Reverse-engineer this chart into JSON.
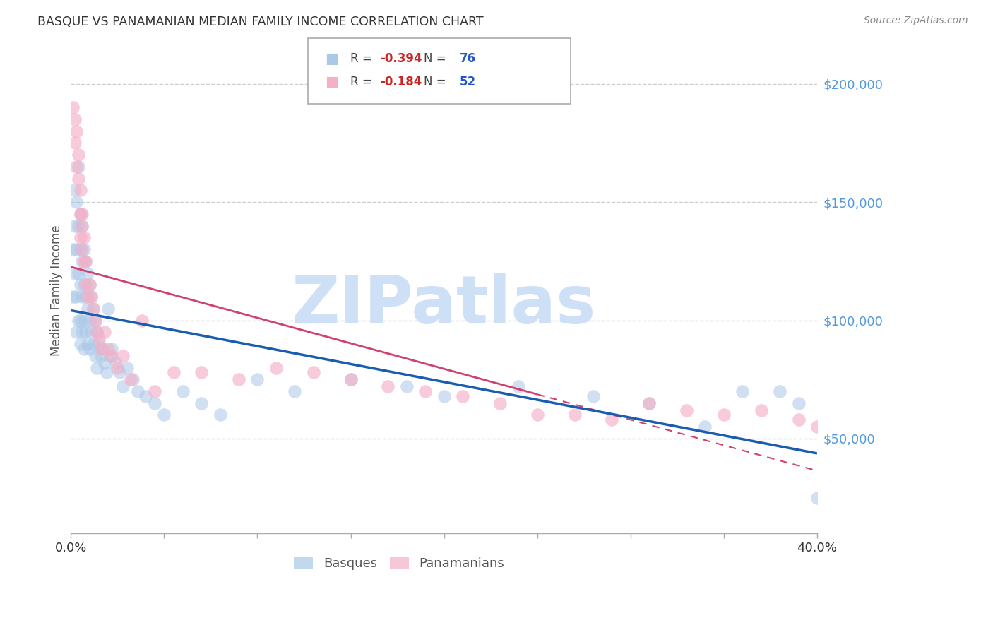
{
  "title": "BASQUE VS PANAMANIAN MEDIAN FAMILY INCOME CORRELATION CHART",
  "source": "Source: ZipAtlas.com",
  "ylabel": "Median Family Income",
  "y_ticks": [
    50000,
    100000,
    150000,
    200000
  ],
  "y_tick_labels": [
    "$50,000",
    "$100,000",
    "$150,000",
    "$200,000"
  ],
  "ylim": [
    10000,
    215000
  ],
  "xlim": [
    0.0,
    0.4
  ],
  "blue_R": -0.394,
  "blue_N": 76,
  "pink_R": -0.184,
  "pink_N": 52,
  "blue_color": "#aac8e8",
  "pink_color": "#f4b0c8",
  "blue_line_color": "#1a5cb0",
  "pink_line_color": "#d04070",
  "pink_line_dash": [
    6,
    4
  ],
  "watermark_text": "ZIPatlas",
  "watermark_color": "#cde0f5",
  "legend_label_blue": "Basques",
  "legend_label_pink": "Panamanians",
  "blue_x": [
    0.001,
    0.001,
    0.002,
    0.002,
    0.002,
    0.003,
    0.003,
    0.003,
    0.003,
    0.004,
    0.004,
    0.004,
    0.004,
    0.005,
    0.005,
    0.005,
    0.005,
    0.005,
    0.006,
    0.006,
    0.006,
    0.006,
    0.007,
    0.007,
    0.007,
    0.007,
    0.008,
    0.008,
    0.008,
    0.009,
    0.009,
    0.009,
    0.01,
    0.01,
    0.01,
    0.011,
    0.011,
    0.012,
    0.012,
    0.013,
    0.013,
    0.014,
    0.014,
    0.015,
    0.016,
    0.017,
    0.018,
    0.019,
    0.02,
    0.021,
    0.022,
    0.024,
    0.026,
    0.028,
    0.03,
    0.033,
    0.036,
    0.04,
    0.045,
    0.05,
    0.06,
    0.07,
    0.08,
    0.1,
    0.12,
    0.15,
    0.18,
    0.2,
    0.24,
    0.28,
    0.31,
    0.34,
    0.36,
    0.38,
    0.39,
    0.4
  ],
  "blue_y": [
    130000,
    110000,
    155000,
    140000,
    120000,
    150000,
    130000,
    110000,
    95000,
    165000,
    140000,
    120000,
    100000,
    145000,
    130000,
    115000,
    100000,
    90000,
    140000,
    125000,
    110000,
    95000,
    130000,
    115000,
    100000,
    88000,
    125000,
    110000,
    95000,
    120000,
    105000,
    90000,
    115000,
    100000,
    88000,
    110000,
    95000,
    105000,
    90000,
    100000,
    85000,
    95000,
    80000,
    90000,
    85000,
    88000,
    82000,
    78000,
    105000,
    85000,
    88000,
    82000,
    78000,
    72000,
    80000,
    75000,
    70000,
    68000,
    65000,
    60000,
    70000,
    65000,
    60000,
    75000,
    70000,
    75000,
    72000,
    68000,
    72000,
    68000,
    65000,
    55000,
    70000,
    70000,
    65000,
    25000
  ],
  "pink_x": [
    0.001,
    0.002,
    0.003,
    0.004,
    0.004,
    0.005,
    0.005,
    0.005,
    0.006,
    0.006,
    0.007,
    0.007,
    0.008,
    0.008,
    0.009,
    0.01,
    0.011,
    0.012,
    0.013,
    0.014,
    0.015,
    0.016,
    0.018,
    0.02,
    0.022,
    0.025,
    0.028,
    0.032,
    0.038,
    0.045,
    0.055,
    0.07,
    0.09,
    0.11,
    0.13,
    0.15,
    0.17,
    0.19,
    0.21,
    0.23,
    0.25,
    0.27,
    0.29,
    0.31,
    0.33,
    0.35,
    0.37,
    0.39,
    0.4,
    0.002,
    0.003,
    0.006
  ],
  "pink_y": [
    190000,
    185000,
    180000,
    170000,
    160000,
    155000,
    145000,
    135000,
    145000,
    130000,
    135000,
    125000,
    125000,
    115000,
    110000,
    115000,
    110000,
    105000,
    100000,
    95000,
    92000,
    88000,
    95000,
    88000,
    85000,
    80000,
    85000,
    75000,
    100000,
    70000,
    78000,
    78000,
    75000,
    80000,
    78000,
    75000,
    72000,
    70000,
    68000,
    65000,
    60000,
    60000,
    58000,
    65000,
    62000,
    60000,
    62000,
    58000,
    55000,
    175000,
    165000,
    140000
  ]
}
